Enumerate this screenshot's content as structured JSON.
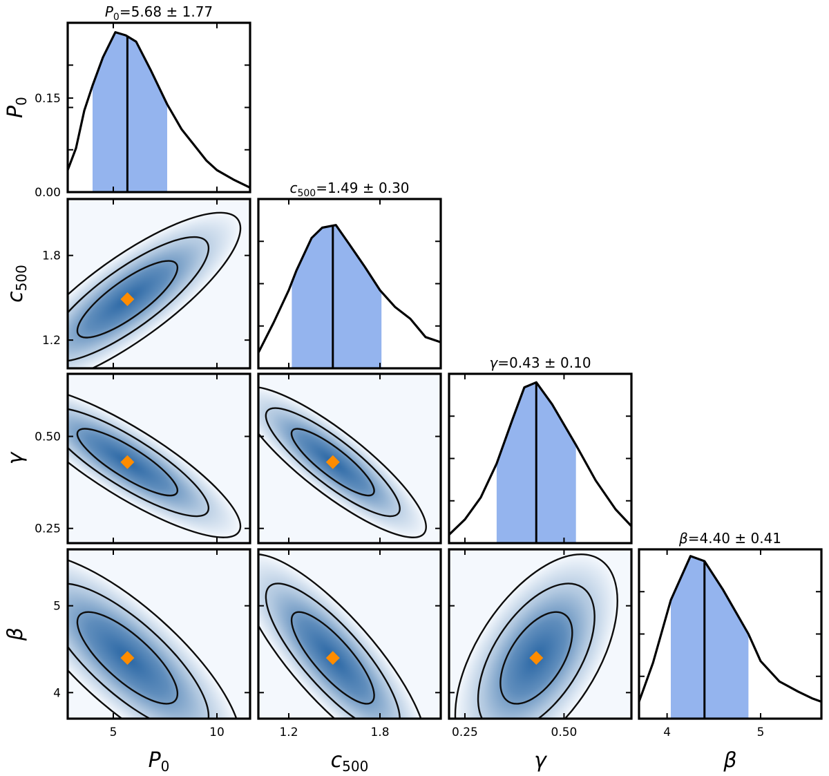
{
  "chart_data": {
    "type": "corner",
    "parameters": [
      {
        "key": "P0",
        "symbol": "P",
        "sub": "0",
        "range": [
          2.8,
          11.6
        ],
        "ticks": [
          5,
          10
        ],
        "ticklabels": [
          "5",
          "10"
        ],
        "best": 5.68,
        "summary": {
          "label_sym": "P",
          "label_sub": "0",
          "value": "5.68",
          "pm": "±",
          "err": "1.77"
        },
        "ci": [
          4.0,
          7.6
        ],
        "density": {
          "x": [
            2.8,
            3.2,
            3.6,
            4.0,
            4.5,
            5.1,
            5.6,
            6.1,
            6.8,
            7.6,
            8.3,
            8.9,
            9.5,
            10.0,
            10.8,
            11.6
          ],
          "y": [
            0.035,
            0.07,
            0.13,
            0.17,
            0.215,
            0.255,
            0.25,
            0.24,
            0.195,
            0.14,
            0.1,
            0.075,
            0.05,
            0.035,
            0.02,
            0.007
          ]
        },
        "ylim": [
          0.0,
          0.27
        ],
        "yticks": [
          0.0,
          0.15
        ],
        "yticklabels": [
          "0.00",
          "0.15"
        ]
      },
      {
        "key": "c500",
        "symbol": "c",
        "sub": "500",
        "range": [
          1.0,
          2.2
        ],
        "ticks": [
          1.2,
          1.8
        ],
        "ticklabels": [
          "1.2",
          "1.8"
        ],
        "best": 1.49,
        "summary": {
          "label_sym": "c",
          "label_sub": "500",
          "value": "1.49",
          "pm": "±",
          "err": "0.30"
        },
        "ci": [
          1.22,
          1.81
        ],
        "density": {
          "x": [
            1.0,
            1.1,
            1.2,
            1.25,
            1.35,
            1.42,
            1.51,
            1.6,
            1.7,
            1.8,
            1.9,
            2.0,
            2.1,
            2.2
          ],
          "y": [
            0.12,
            0.35,
            0.6,
            0.75,
            1.0,
            1.08,
            1.1,
            0.95,
            0.78,
            0.6,
            0.47,
            0.38,
            0.24,
            0.2
          ]
        },
        "ylim": [
          0.0,
          1.3
        ]
      },
      {
        "key": "gamma",
        "symbol": "γ",
        "sub": "",
        "range": [
          0.21,
          0.67
        ],
        "ticks": [
          0.25,
          0.5
        ],
        "ticklabels": [
          "0.25",
          "0.50"
        ],
        "best": 0.43,
        "summary": {
          "label_sym": "γ",
          "label_sub": "",
          "value": "0.43",
          "pm": "±",
          "err": "0.10"
        },
        "ci": [
          0.33,
          0.53
        ],
        "density": {
          "x": [
            0.21,
            0.25,
            0.29,
            0.33,
            0.37,
            0.4,
            0.43,
            0.47,
            0.53,
            0.58,
            0.63,
            0.67
          ],
          "y": [
            0.05,
            0.14,
            0.27,
            0.47,
            0.73,
            0.92,
            0.95,
            0.82,
            0.58,
            0.37,
            0.2,
            0.1
          ]
        },
        "ylim": [
          0.0,
          1.0
        ]
      },
      {
        "key": "beta",
        "symbol": "β",
        "sub": "",
        "range": [
          3.7,
          5.65
        ],
        "ticks": [
          4,
          5
        ],
        "ticklabels": [
          "4",
          "5"
        ],
        "best": 4.4,
        "summary": {
          "label_sym": "β",
          "label_sub": "",
          "value": "4.40",
          "pm": "±",
          "err": "0.41"
        },
        "ci": [
          4.04,
          4.87
        ],
        "density": {
          "x": [
            3.7,
            3.85,
            4.04,
            4.25,
            4.4,
            4.6,
            4.87,
            5.0,
            5.2,
            5.4,
            5.55,
            5.65
          ],
          "y": [
            0.1,
            0.33,
            0.7,
            0.96,
            0.93,
            0.76,
            0.5,
            0.34,
            0.22,
            0.16,
            0.12,
            0.1
          ]
        },
        "ylim": [
          0.0,
          1.0
        ]
      }
    ],
    "pairs": [
      {
        "row": 1,
        "col": 0,
        "x": "P0",
        "y": "c500",
        "rho": 0.82,
        "spread": [
          1.6,
          0.18
        ]
      },
      {
        "row": 2,
        "col": 0,
        "x": "P0",
        "y": "gamma",
        "rho": -0.85,
        "spread": [
          1.6,
          0.06
        ]
      },
      {
        "row": 2,
        "col": 1,
        "x": "c500",
        "y": "gamma",
        "rho": -0.86,
        "spread": [
          0.18,
          0.06
        ]
      },
      {
        "row": 3,
        "col": 0,
        "x": "P0",
        "y": "beta",
        "rho": -0.78,
        "spread": [
          1.6,
          0.35
        ]
      },
      {
        "row": 3,
        "col": 1,
        "x": "c500",
        "y": "beta",
        "rho": -0.82,
        "spread": [
          0.18,
          0.35
        ]
      },
      {
        "row": 3,
        "col": 2,
        "x": "gamma",
        "y": "beta",
        "rho": 0.55,
        "spread": [
          0.06,
          0.35
        ]
      }
    ],
    "contour_levels": [
      0.68,
      0.95,
      0.997
    ],
    "colors": {
      "band": "#94b4ee",
      "best_fit": "#ff8c00",
      "density_dark": "#1f5fa0",
      "density_light": "#f4f8fd",
      "contour": "#0d0d0d"
    }
  }
}
